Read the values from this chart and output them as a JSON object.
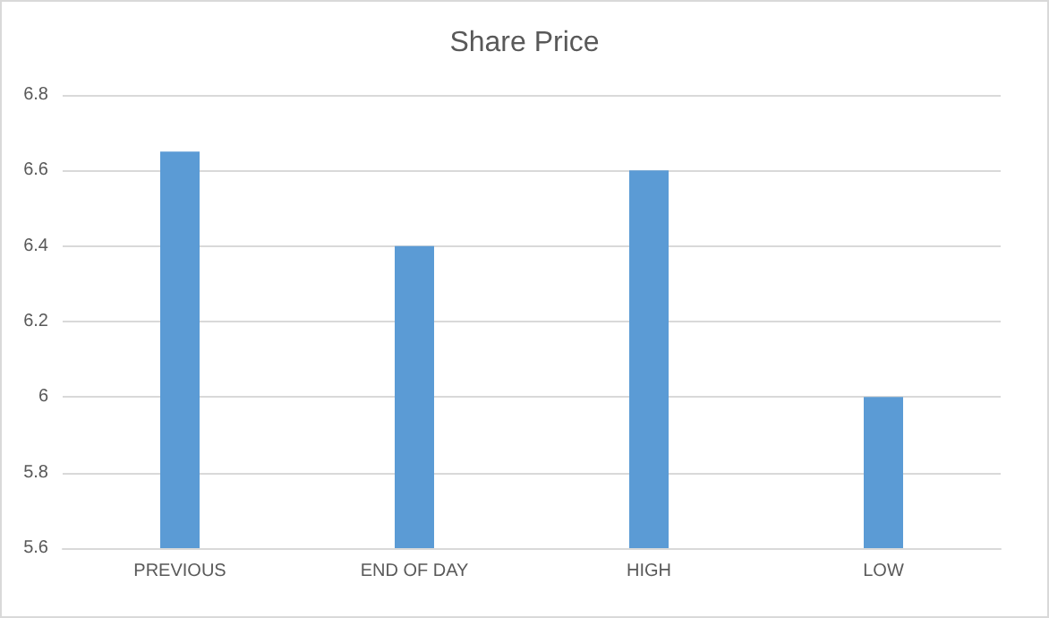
{
  "chart_data": {
    "type": "bar",
    "title": "Share Price",
    "categories": [
      "PREVIOUS",
      "END OF DAY",
      "HIGH",
      "LOW"
    ],
    "values": [
      6.65,
      6.4,
      6.6,
      6.0
    ],
    "color": "#5b9bd5",
    "ylim": [
      5.6,
      6.8
    ],
    "yticks": [
      5.6,
      5.8,
      6,
      6.2,
      6.4,
      6.6,
      6.8
    ],
    "grid": "y"
  }
}
